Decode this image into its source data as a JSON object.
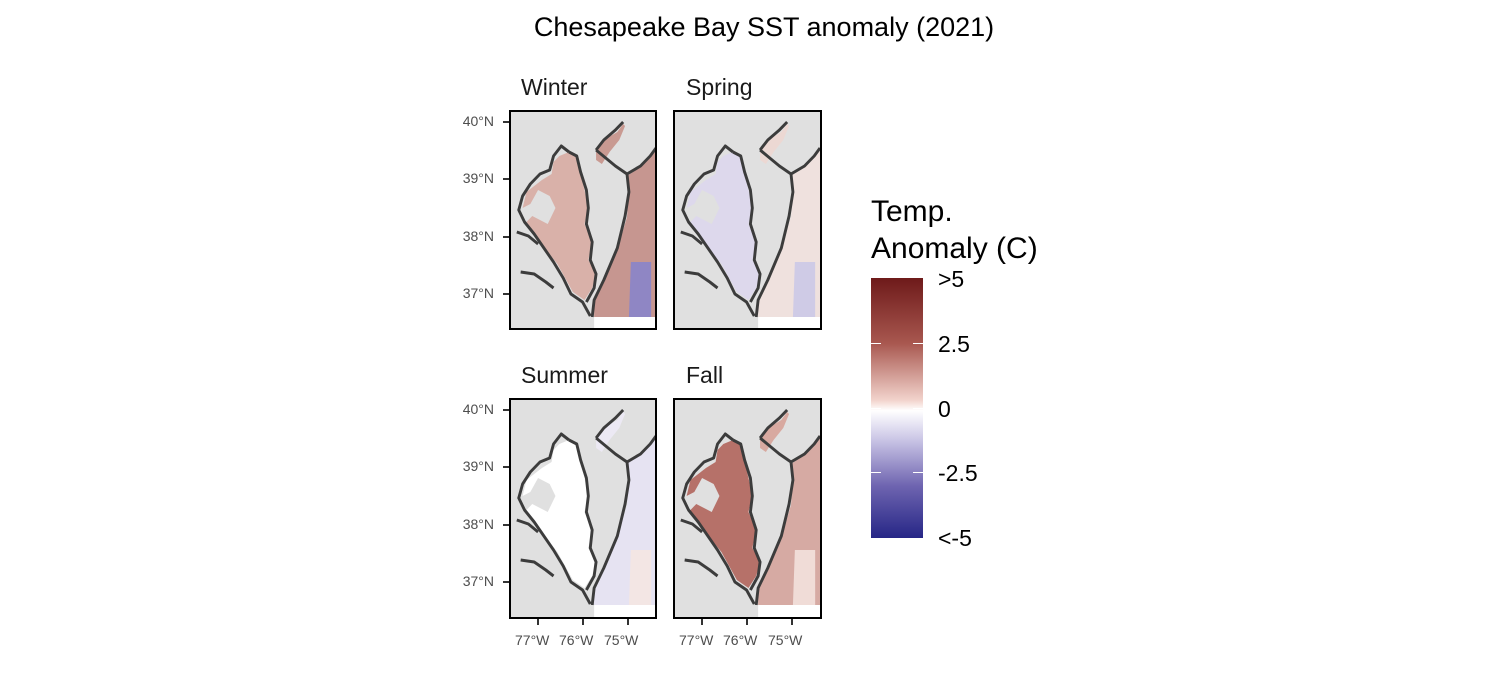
{
  "title": "Chesapeake Bay SST anomaly (2021)",
  "panels": [
    {
      "name": "Winter",
      "fill_main": "#c99a92",
      "fill_ocean": "#c69690",
      "fill_bay": "#d9b1a9",
      "patch": "#8f86c4"
    },
    {
      "name": "Spring",
      "fill_main": "#ecd8d3",
      "fill_ocean": "#efe1de",
      "fill_bay": "#ddd8ec",
      "patch": "#cfcbe6"
    },
    {
      "name": "Summer",
      "fill_main": "#ece9f4",
      "fill_ocean": "#e6e3f2",
      "fill_bay": "#ffffff",
      "patch": "#f3e6e4"
    },
    {
      "name": "Fall",
      "fill_main": "#d8a9a0",
      "fill_ocean": "#d6aaa3",
      "fill_bay": "#b67169",
      "patch": "#f0dcd7"
    }
  ],
  "axes": {
    "y_ticks": [
      "40°N",
      "39°N",
      "38°N",
      "37°N"
    ],
    "x_ticks": [
      "77°W",
      "76°W",
      "75°W"
    ]
  },
  "legend": {
    "title_line1": "Temp.",
    "title_line2": "Anomaly (C)",
    "labels": [
      ">5",
      "2.5",
      "0",
      "-2.5",
      "<-5"
    ]
  },
  "colors": {
    "high": "#6e1a1a",
    "zero": "#ffffff",
    "low": "#262686",
    "land": "#e0e0e0",
    "coast": "#3c3c3c"
  }
}
